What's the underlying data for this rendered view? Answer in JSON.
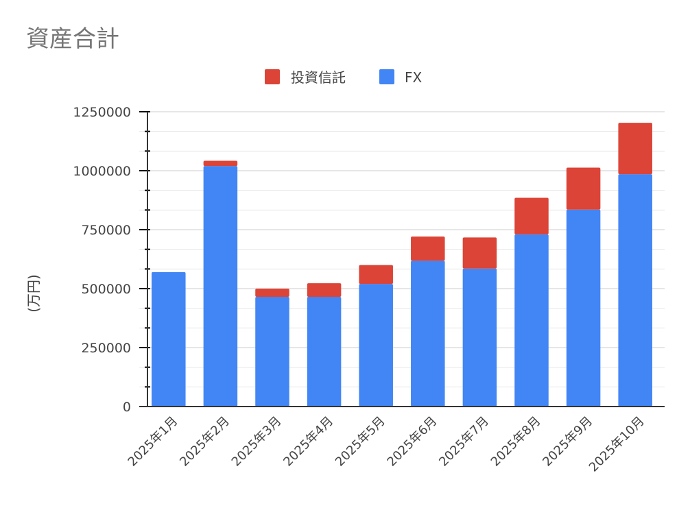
{
  "chart_data": {
    "type": "bar",
    "stacked": true,
    "title": "資産合計",
    "xlabel": "",
    "ylabel": "(万円)",
    "ylim": [
      0,
      1250000
    ],
    "y_ticks": [
      "0",
      "250000",
      "500000",
      "750000",
      "1000000",
      "1250000"
    ],
    "grid": true,
    "legend_position": "top",
    "categories": [
      "2025年1月",
      "2025年2月",
      "2025年3月",
      "2025年4月",
      "2025年5月",
      "2025年6月",
      "2025年7月",
      "2025年8月",
      "2025年9月",
      "2025年10月"
    ],
    "series": [
      {
        "name": "FX",
        "color": "#4285f4",
        "values": [
          570000,
          1020000,
          465000,
          465000,
          520000,
          618000,
          585000,
          730000,
          835000,
          985000
        ]
      },
      {
        "name": "投資信託",
        "color": "#db4437",
        "values": [
          0,
          22000,
          35000,
          58000,
          80000,
          103000,
          132000,
          155000,
          178000,
          218000
        ]
      }
    ],
    "legend_order": [
      "投資信託",
      "FX"
    ]
  }
}
